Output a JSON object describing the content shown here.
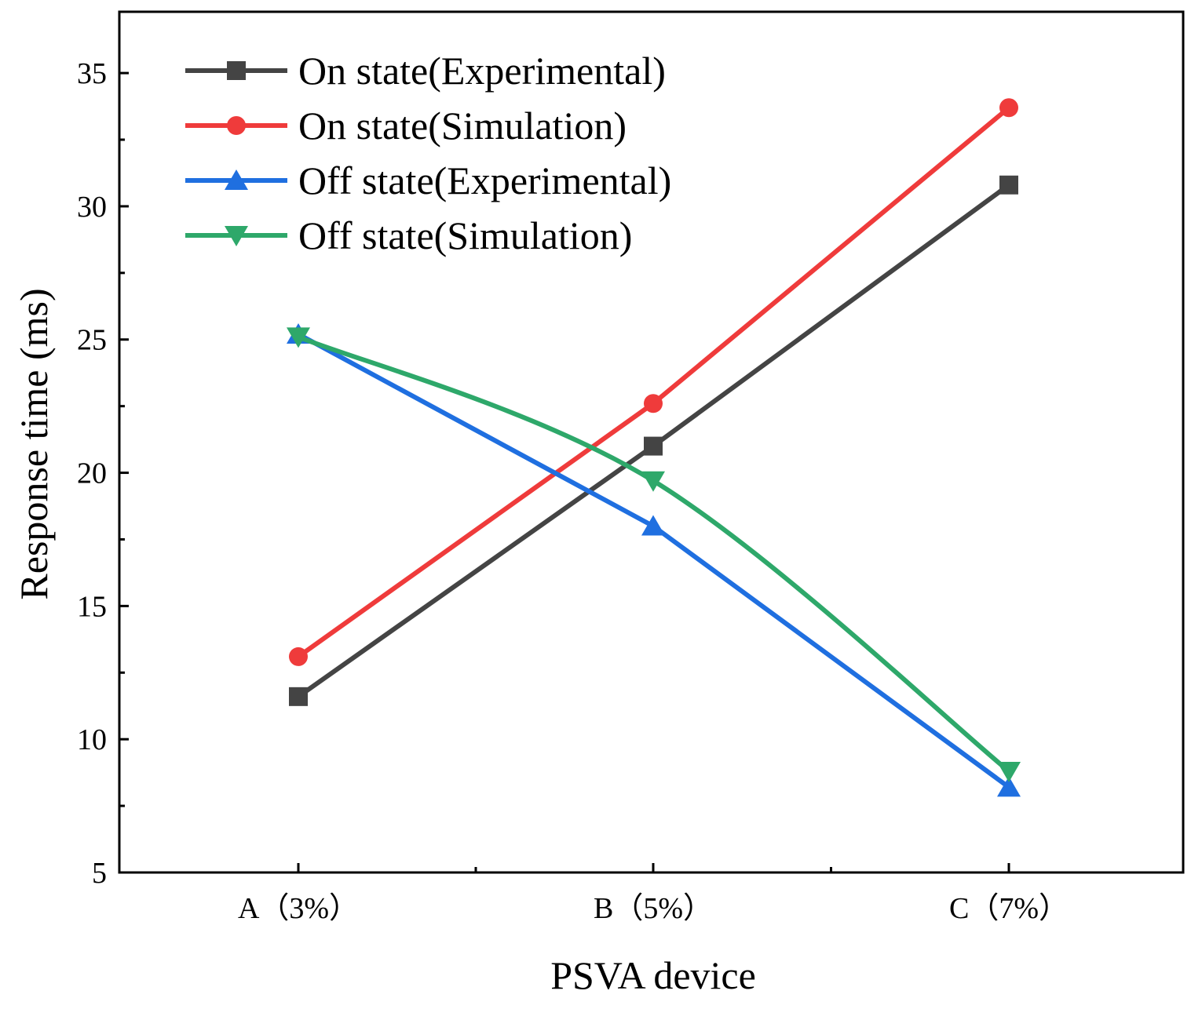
{
  "chart_data": {
    "type": "line",
    "title": "",
    "xlabel": "PSVA device",
    "ylabel": "Response time (ms)",
    "categories": [
      "A（3%）",
      "B（5%）",
      "C（7%）"
    ],
    "ylim": [
      5,
      37.3
    ],
    "yticks": [
      5,
      10,
      15,
      20,
      25,
      30,
      35
    ],
    "grid": false,
    "legend_position": "top-left",
    "series": [
      {
        "name": "On state(Experimental)",
        "color": "#444444",
        "marker": "square",
        "values": [
          11.6,
          21.0,
          30.8
        ],
        "smooth": false
      },
      {
        "name": "On state(Simulation)",
        "color": "#ef3b3b",
        "marker": "circle",
        "values": [
          13.1,
          22.6,
          33.7
        ],
        "smooth": false
      },
      {
        "name": "Off state(Experimental)",
        "color": "#1f6fe0",
        "marker": "triangle-up",
        "values": [
          25.2,
          18.0,
          8.2
        ],
        "smooth": false
      },
      {
        "name": "Off state(Simulation)",
        "color": "#2ea86a",
        "marker": "triangle-down",
        "values": [
          25.1,
          19.7,
          8.8
        ],
        "smooth": true
      }
    ]
  }
}
